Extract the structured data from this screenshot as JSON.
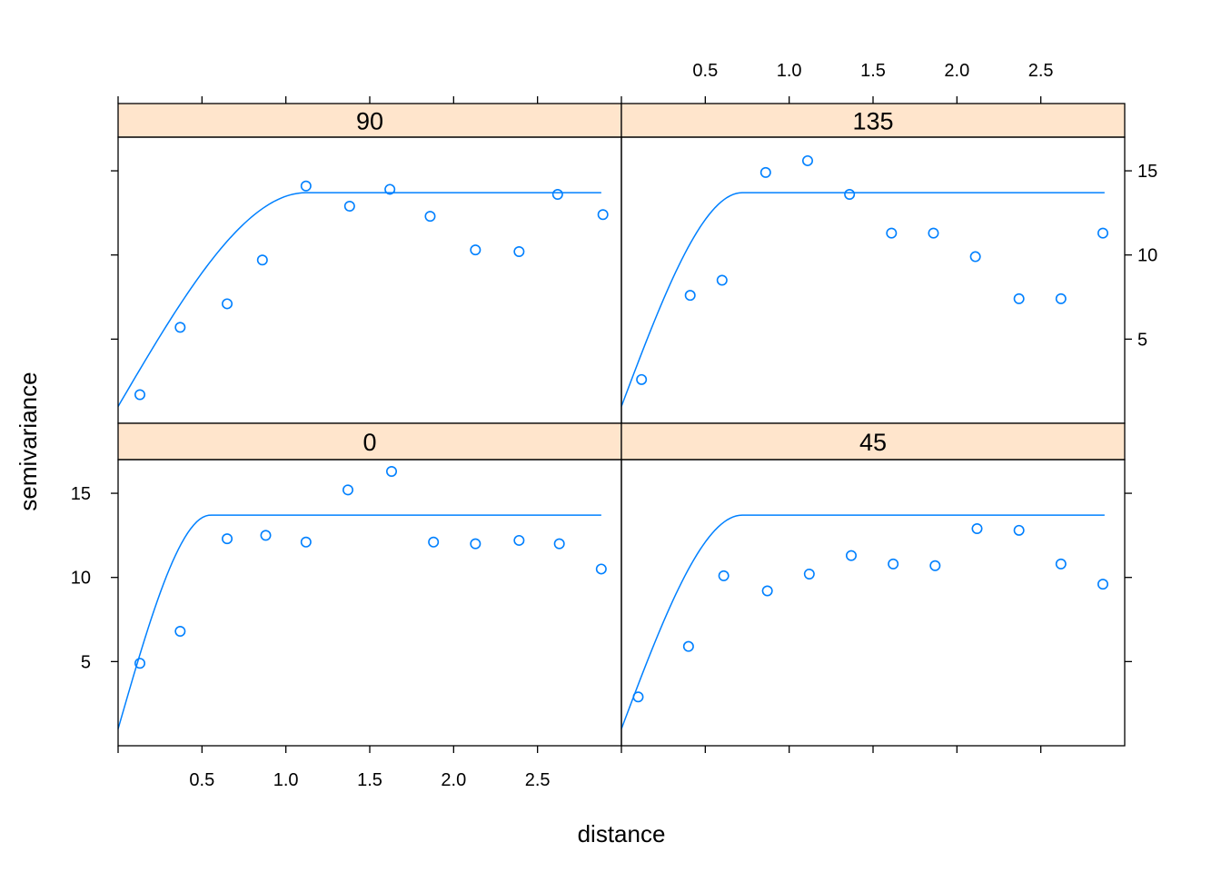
{
  "chart_data": {
    "type": "scatter",
    "layout": "2x2 lattice, panels share axes",
    "xlabel": "distance",
    "ylabel": "semivariance",
    "xlim": [
      0,
      3.0
    ],
    "ylim": [
      0,
      17
    ],
    "x_ticks": [
      0.5,
      1.0,
      1.5,
      2.0,
      2.5
    ],
    "y_ticks": [
      5,
      10,
      15
    ],
    "x_tick_labels": [
      "0.5",
      "1.0",
      "1.5",
      "2.0",
      "2.5"
    ],
    "y_tick_labels": [
      "5",
      "10",
      "15"
    ],
    "colors": {
      "points": "#0080ff",
      "fit_line": "#0080ff",
      "strip_fill": "#ffe5cc",
      "frame": "#000000"
    },
    "fit": {
      "nugget": 1.0,
      "sill": 13.7,
      "max_x": 2.88
    },
    "panels": [
      {
        "strip_label": "90",
        "position": "top-left",
        "range": 1.12,
        "points": [
          [
            0.13,
            1.7
          ],
          [
            0.37,
            5.7
          ],
          [
            0.65,
            7.1
          ],
          [
            0.86,
            9.7
          ],
          [
            1.12,
            14.1
          ],
          [
            1.38,
            12.9
          ],
          [
            1.62,
            13.9
          ],
          [
            1.86,
            12.3
          ],
          [
            2.13,
            10.3
          ],
          [
            2.39,
            10.2
          ],
          [
            2.62,
            13.6
          ],
          [
            2.89,
            12.4
          ]
        ]
      },
      {
        "strip_label": "135",
        "position": "top-right",
        "range": 0.72,
        "points": [
          [
            0.12,
            2.6
          ],
          [
            0.41,
            7.6
          ],
          [
            0.6,
            8.5
          ],
          [
            0.86,
            14.9
          ],
          [
            1.11,
            15.6
          ],
          [
            1.36,
            13.6
          ],
          [
            1.61,
            11.3
          ],
          [
            1.86,
            11.3
          ],
          [
            2.11,
            9.9
          ],
          [
            2.37,
            7.4
          ],
          [
            2.62,
            7.4
          ],
          [
            2.87,
            11.3
          ]
        ]
      },
      {
        "strip_label": "0",
        "position": "bottom-left",
        "range": 0.55,
        "points": [
          [
            0.13,
            4.9
          ],
          [
            0.37,
            6.8
          ],
          [
            0.65,
            12.3
          ],
          [
            0.88,
            12.5
          ],
          [
            1.12,
            12.1
          ],
          [
            1.37,
            15.2
          ],
          [
            1.63,
            16.3
          ],
          [
            1.88,
            12.1
          ],
          [
            2.13,
            12.0
          ],
          [
            2.39,
            12.2
          ],
          [
            2.63,
            12.0
          ],
          [
            2.88,
            10.5
          ]
        ]
      },
      {
        "strip_label": "45",
        "position": "bottom-right",
        "range": 0.72,
        "points": [
          [
            0.1,
            2.9
          ],
          [
            0.4,
            5.9
          ],
          [
            0.61,
            10.1
          ],
          [
            0.87,
            9.2
          ],
          [
            1.12,
            10.2
          ],
          [
            1.37,
            11.3
          ],
          [
            1.62,
            10.8
          ],
          [
            1.87,
            10.7
          ],
          [
            2.12,
            12.9
          ],
          [
            2.37,
            12.8
          ],
          [
            2.62,
            10.8
          ],
          [
            2.87,
            9.6
          ]
        ]
      }
    ]
  }
}
